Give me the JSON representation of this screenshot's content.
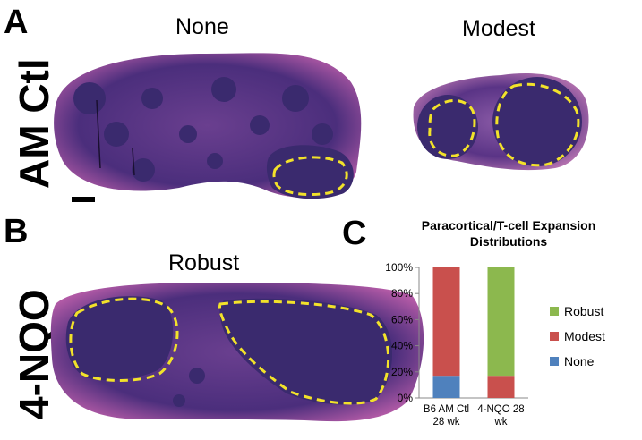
{
  "panels": {
    "a": {
      "letter": "A",
      "row_label": "AM Ctl",
      "left_label": "None",
      "right_label": "Modest"
    },
    "b": {
      "letter": "B",
      "row_label": "4-NQO",
      "image_label": "Robust"
    },
    "c": {
      "letter": "C"
    }
  },
  "colors": {
    "tissue_dark": "#3a2a6e",
    "tissue_light": "#b25aa6",
    "outline_dash": "#f2e22a",
    "robust": "#8cb84e",
    "modest": "#c9504d",
    "none": "#4f81bd"
  },
  "chart_data": {
    "type": "bar",
    "stacked": true,
    "title": "Paracortical/T-cell Expansion Distributions",
    "categories": [
      [
        "B6 AM Ctl",
        "28 wk"
      ],
      [
        "4-NQO 28",
        "wk"
      ]
    ],
    "series": [
      {
        "name": "None",
        "values": [
          17,
          0
        ]
      },
      {
        "name": "Modest",
        "values": [
          83,
          17
        ]
      },
      {
        "name": "Robust",
        "values": [
          0,
          83
        ]
      }
    ],
    "ylim": [
      0,
      100
    ],
    "yticks": [
      "0%",
      "20%",
      "40%",
      "60%",
      "80%",
      "100%"
    ],
    "legend_order": [
      "Robust",
      "Modest",
      "None"
    ],
    "legend_position": "right"
  }
}
